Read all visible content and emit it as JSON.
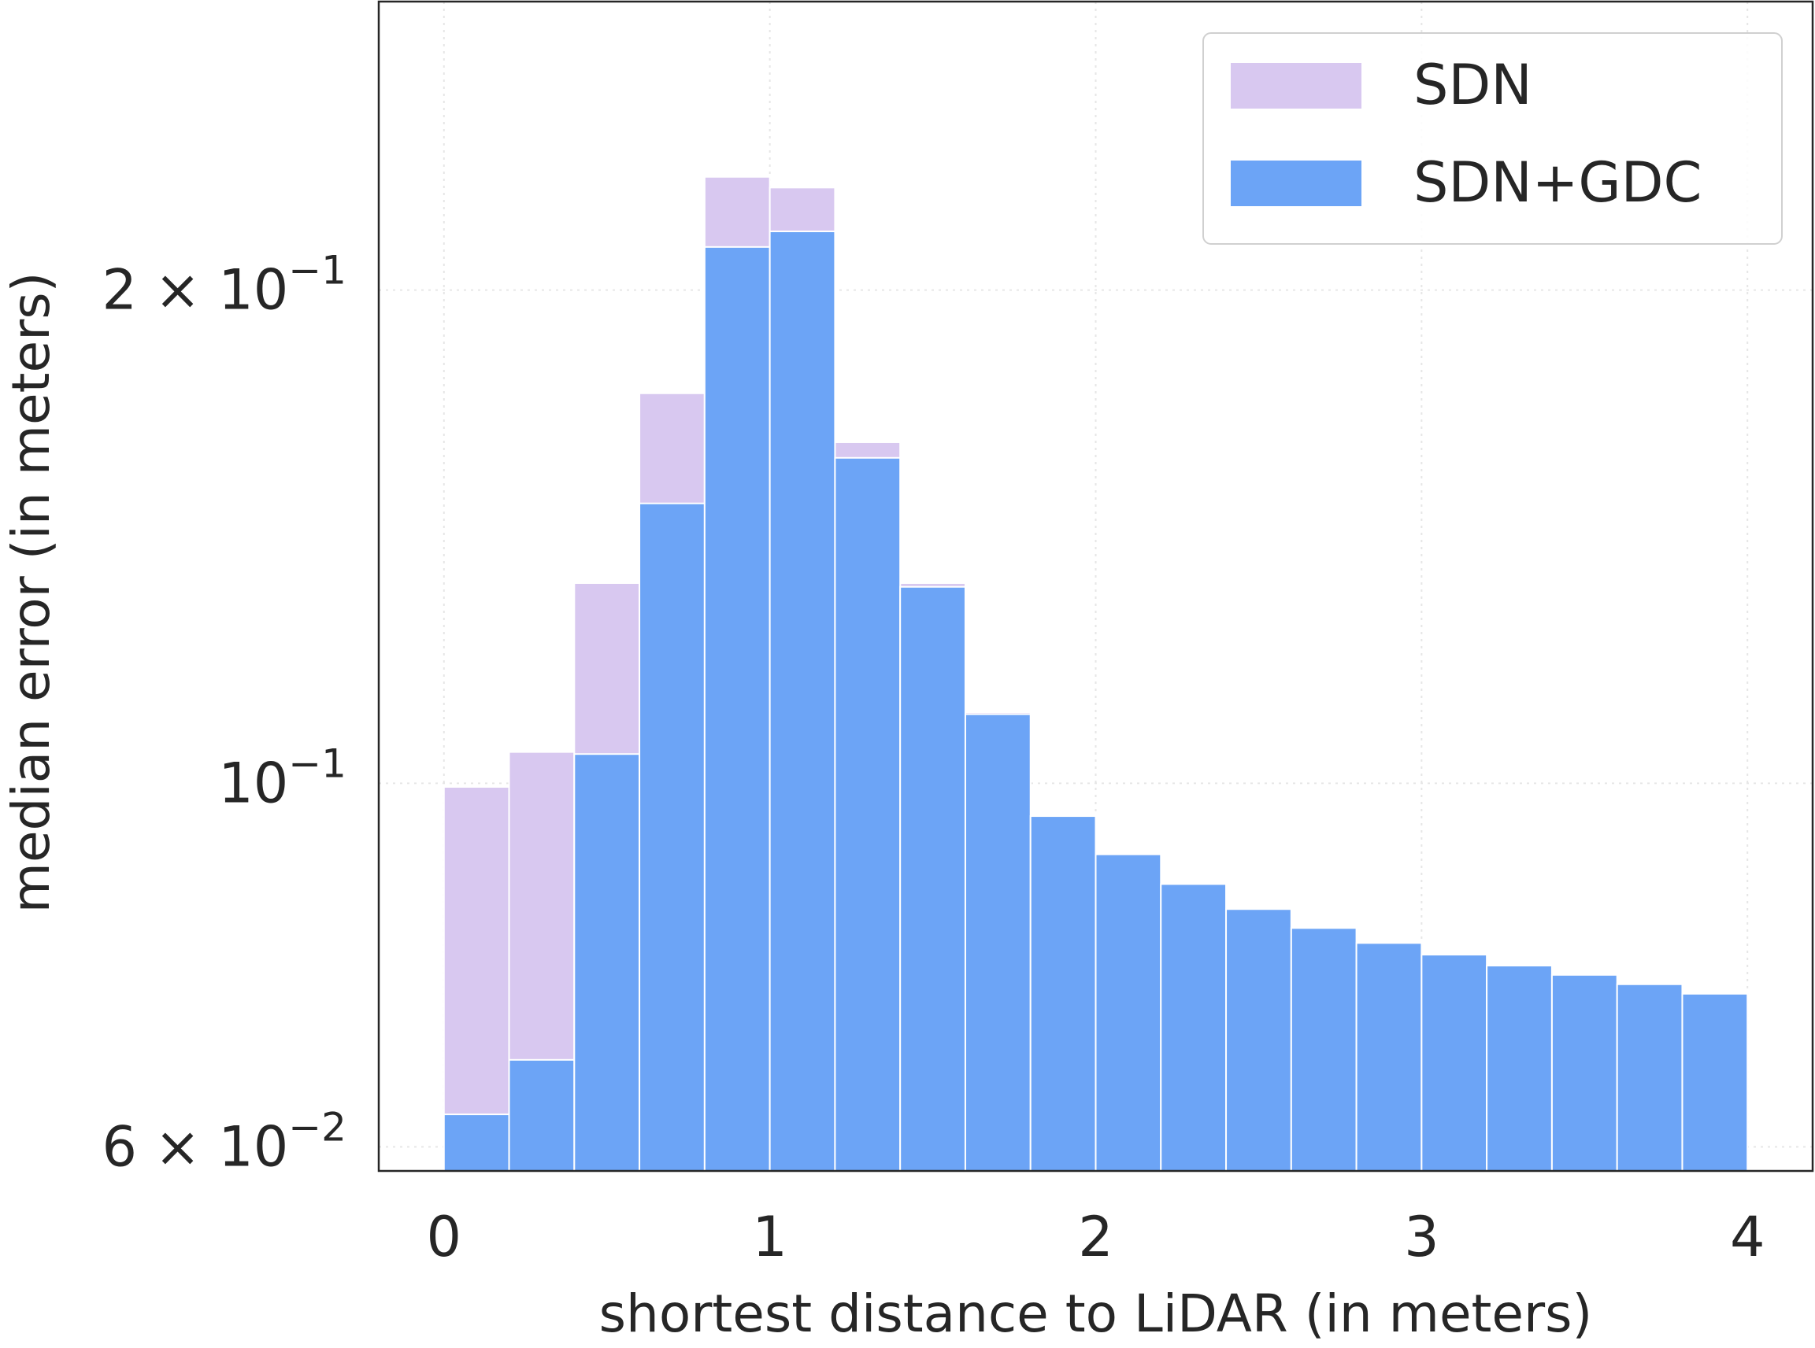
{
  "chart_data": {
    "type": "bar",
    "xlabel": "shortest distance to LiDAR (in meters)",
    "ylabel": "median error (in meters)",
    "y_scale": "log",
    "xlim": [
      -0.2,
      4.2
    ],
    "ylim": [
      0.058,
      0.3
    ],
    "grid": true,
    "legend_position": "top-right",
    "x_ticks": [
      "0",
      "1",
      "2",
      "3",
      "4"
    ],
    "y_ticks": [
      {
        "value": 0.2,
        "mantissa": "2",
        "times": "×",
        "base": "10",
        "exp": "−1"
      },
      {
        "value": 0.1,
        "mantissa": "",
        "times": "",
        "base": "10",
        "exp": "−1"
      },
      {
        "value": 0.06,
        "mantissa": "6",
        "times": "×",
        "base": "10",
        "exp": "−2"
      }
    ],
    "bin_edges": [
      0.0,
      0.2,
      0.4,
      0.6,
      0.8,
      1.0,
      1.2,
      1.4,
      1.6,
      1.8,
      2.0,
      2.2,
      2.4,
      2.6,
      2.8,
      3.0,
      3.2,
      3.4,
      3.6,
      3.8,
      4.0
    ],
    "series": [
      {
        "name": "SDN",
        "color": "#d8c8f0",
        "values": [
          0.0995,
          0.1045,
          0.1325,
          0.173,
          0.2345,
          0.231,
          0.1615,
          0.1325,
          0.1105,
          0.0955,
          0.0905,
          0.0868,
          0.0838,
          0.0816,
          0.0799,
          0.0786,
          0.0774,
          0.0764,
          0.0754,
          0.0744
        ]
      },
      {
        "name": "SDN+GDC",
        "color": "#6ca4f6",
        "values": [
          0.0628,
          0.0678,
          0.1042,
          0.1482,
          0.2125,
          0.2172,
          0.158,
          0.1318,
          0.1102,
          0.0955,
          0.0905,
          0.0868,
          0.0838,
          0.0816,
          0.0799,
          0.0786,
          0.0774,
          0.0764,
          0.0754,
          0.0744
        ]
      }
    ]
  }
}
